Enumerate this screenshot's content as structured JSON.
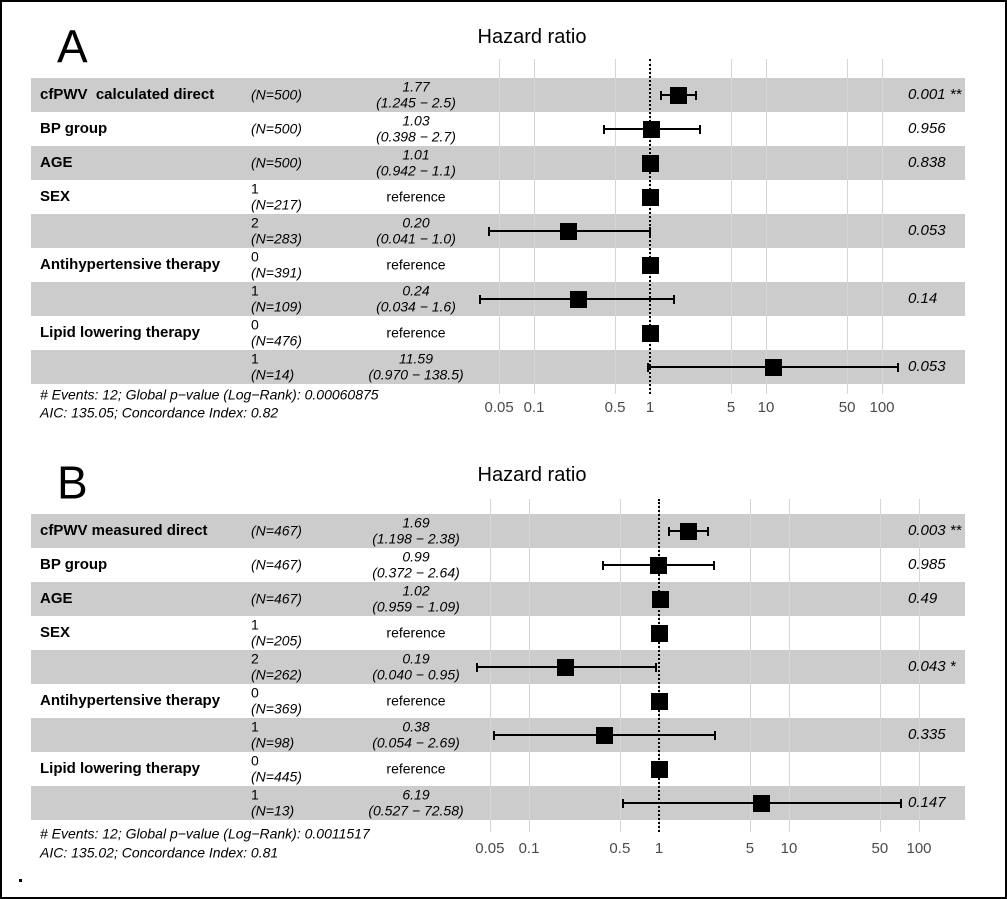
{
  "chart_data": [
    {
      "type": "forest",
      "panel": "A",
      "title": "Hazard ratio",
      "x_axis": {
        "scale": "log10",
        "ticks": [
          0.05,
          0.1,
          0.5,
          1,
          5,
          10,
          50,
          100
        ],
        "reference_line": 1,
        "range": [
          0.034,
          138.5
        ]
      },
      "rows": [
        {
          "variable": "cfPWV  calculated direct",
          "level": "",
          "n": "(N=500)",
          "estimate": "1.77",
          "ci": "(1.245 − 2.5)",
          "hr": 1.77,
          "lo": 1.245,
          "hi": 2.5,
          "p": "0.001 **",
          "reference": false
        },
        {
          "variable": "BP group",
          "level": "",
          "n": "(N=500)",
          "estimate": "1.03",
          "ci": "(0.398 − 2.7)",
          "hr": 1.03,
          "lo": 0.398,
          "hi": 2.7,
          "p": "0.956",
          "reference": false
        },
        {
          "variable": "AGE",
          "level": "",
          "n": "(N=500)",
          "estimate": "1.01",
          "ci": "(0.942 − 1.1)",
          "hr": 1.01,
          "lo": 0.942,
          "hi": 1.1,
          "p": "0.838",
          "reference": false
        },
        {
          "variable": "SEX",
          "level": "1",
          "n": "(N=217)",
          "estimate": "reference",
          "ci": "",
          "hr": 1,
          "lo": null,
          "hi": null,
          "p": "",
          "reference": true
        },
        {
          "variable": "",
          "level": "2",
          "n": "(N=283)",
          "estimate": "0.20",
          "ci": "(0.041 − 1.0)",
          "hr": 0.2,
          "lo": 0.041,
          "hi": 1.0,
          "p": "0.053",
          "reference": false
        },
        {
          "variable": "Antihypertensive therapy",
          "level": "0",
          "n": "(N=391)",
          "estimate": "reference",
          "ci": "",
          "hr": 1,
          "lo": null,
          "hi": null,
          "p": "",
          "reference": true
        },
        {
          "variable": "",
          "level": "1",
          "n": "(N=109)",
          "estimate": "0.24",
          "ci": "(0.034 − 1.6)",
          "hr": 0.24,
          "lo": 0.034,
          "hi": 1.6,
          "p": "0.14",
          "reference": false
        },
        {
          "variable": "Lipid lowering therapy",
          "level": "0",
          "n": "(N=476)",
          "estimate": "reference",
          "ci": "",
          "hr": 1,
          "lo": null,
          "hi": null,
          "p": "",
          "reference": true
        },
        {
          "variable": "",
          "level": "1",
          "n": "(N=14)",
          "estimate": "11.59",
          "ci": "(0.970 − 138.5)",
          "hr": 11.59,
          "lo": 0.97,
          "hi": 138.5,
          "p": "0.053",
          "reference": false
        }
      ],
      "footer": [
        "# Events: 12; Global p−value (Log−Rank): 0.00060875",
        "AIC: 135.05; Concordance Index: 0.82"
      ]
    },
    {
      "type": "forest",
      "panel": "B",
      "title": "Hazard ratio",
      "x_axis": {
        "scale": "log10",
        "ticks": [
          0.05,
          0.1,
          0.5,
          1,
          5,
          10,
          50,
          100
        ],
        "reference_line": 1,
        "range": [
          0.04,
          72.58
        ]
      },
      "rows": [
        {
          "variable": "cfPWV measured direct",
          "level": "",
          "n": "(N=467)",
          "estimate": "1.69",
          "ci": "(1.198 − 2.38)",
          "hr": 1.69,
          "lo": 1.198,
          "hi": 2.38,
          "p": "0.003 **",
          "reference": false
        },
        {
          "variable": "BP group",
          "level": "",
          "n": "(N=467)",
          "estimate": "0.99",
          "ci": "(0.372 − 2.64)",
          "hr": 0.99,
          "lo": 0.372,
          "hi": 2.64,
          "p": "0.985",
          "reference": false
        },
        {
          "variable": "AGE",
          "level": "",
          "n": "(N=467)",
          "estimate": "1.02",
          "ci": "(0.959 − 1.09)",
          "hr": 1.02,
          "lo": 0.959,
          "hi": 1.09,
          "p": "0.49",
          "reference": false
        },
        {
          "variable": "SEX",
          "level": "1",
          "n": "(N=205)",
          "estimate": "reference",
          "ci": "",
          "hr": 1,
          "lo": null,
          "hi": null,
          "p": "",
          "reference": true
        },
        {
          "variable": "",
          "level": "2",
          "n": "(N=262)",
          "estimate": "0.19",
          "ci": "(0.040 − 0.95)",
          "hr": 0.19,
          "lo": 0.04,
          "hi": 0.95,
          "p": "0.043 *",
          "reference": false
        },
        {
          "variable": "Antihypertensive therapy",
          "level": "0",
          "n": "(N=369)",
          "estimate": "reference",
          "ci": "",
          "hr": 1,
          "lo": null,
          "hi": null,
          "p": "",
          "reference": true
        },
        {
          "variable": "",
          "level": "1",
          "n": "(N=98)",
          "estimate": "0.38",
          "ci": "(0.054 − 2.69)",
          "hr": 0.38,
          "lo": 0.054,
          "hi": 2.69,
          "p": "0.335",
          "reference": false
        },
        {
          "variable": "Lipid lowering therapy",
          "level": "0",
          "n": "(N=445)",
          "estimate": "reference",
          "ci": "",
          "hr": 1,
          "lo": null,
          "hi": null,
          "p": "",
          "reference": true
        },
        {
          "variable": "",
          "level": "1",
          "n": "(N=13)",
          "estimate": "6.19",
          "ci": "(0.527 − 72.58)",
          "hr": 6.19,
          "lo": 0.527,
          "hi": 72.58,
          "p": "0.147",
          "reference": false
        }
      ],
      "footer": [
        "# Events: 12; Global p−value (Log−Rank): 0.0011517",
        "AIC: 135.02; Concordance Index: 0.81"
      ]
    }
  ]
}
